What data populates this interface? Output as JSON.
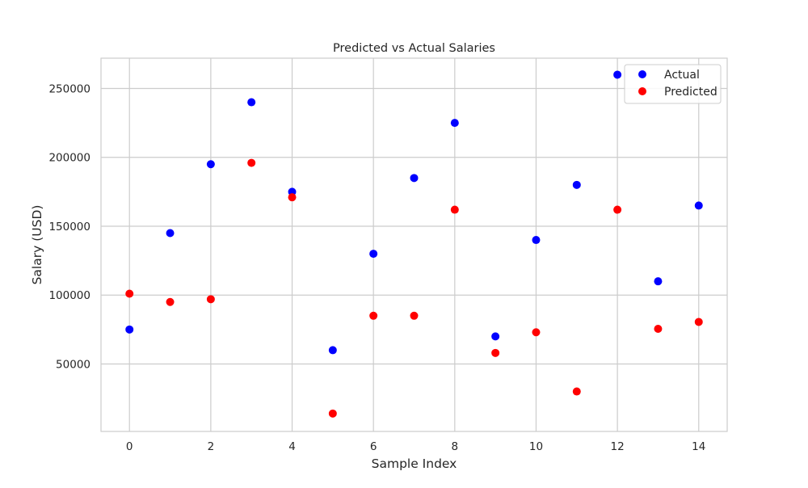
{
  "chart_data": {
    "type": "scatter",
    "title": "Predicted vs Actual Salaries",
    "xlabel": "Sample Index",
    "ylabel": "Salary (USD)",
    "xlim": [
      -0.7,
      14.7
    ],
    "ylim": [
      1000,
      272000
    ],
    "x_ticks": [
      0,
      2,
      4,
      6,
      8,
      10,
      12,
      14
    ],
    "y_ticks": [
      50000,
      100000,
      150000,
      200000,
      250000
    ],
    "grid": true,
    "legend_position": "top-right",
    "series": [
      {
        "name": "Actual",
        "color": "#0000ff",
        "x": [
          0,
          1,
          2,
          3,
          4,
          5,
          6,
          7,
          8,
          9,
          10,
          11,
          12,
          13,
          14
        ],
        "y": [
          75000,
          145000,
          195000,
          240000,
          175000,
          60000,
          130000,
          185000,
          225000,
          70000,
          140000,
          180000,
          260000,
          110000,
          165000
        ]
      },
      {
        "name": "Predicted",
        "color": "#ff0000",
        "x": [
          0,
          1,
          2,
          3,
          4,
          5,
          6,
          7,
          8,
          9,
          10,
          11,
          12,
          13,
          14
        ],
        "y": [
          101000,
          95000,
          97000,
          196000,
          171000,
          14000,
          85000,
          85000,
          162000,
          58000,
          73000,
          30000,
          162000,
          75500,
          80500
        ]
      }
    ]
  }
}
